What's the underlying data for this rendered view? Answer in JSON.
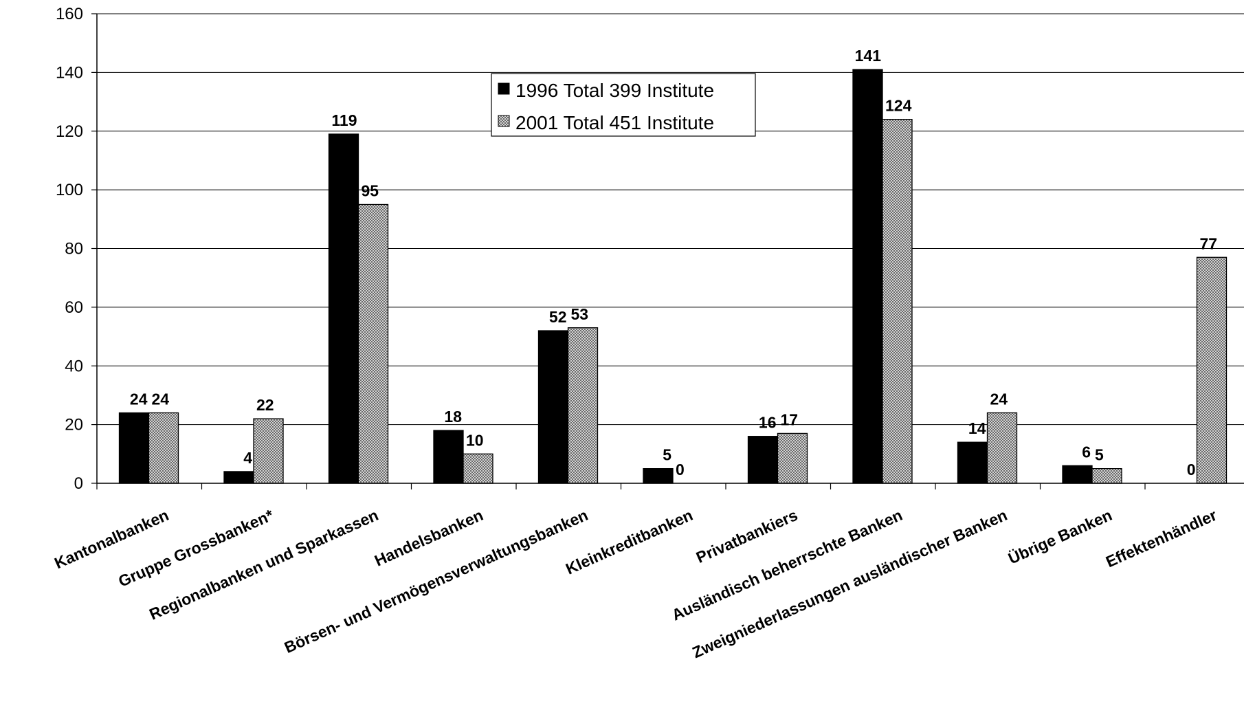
{
  "chart_data": {
    "type": "bar",
    "categories": [
      "Kantonalbanken",
      "Gruppe Grossbanken*",
      "Regionalbanken und Sparkassen",
      "Handelsbanken",
      "Börsen- und Vermögensverwaltungsbanken",
      "Kleinkreditbanken",
      "Privatbankiers",
      "Ausländisch beherrschte Banken",
      "Zweigniederlassungen ausländischer Banken",
      "Übrige Banken",
      "Effektenhändler"
    ],
    "series": [
      {
        "name": "1996 Total 399 Institute",
        "values": [
          24,
          4,
          119,
          18,
          52,
          5,
          16,
          141,
          14,
          6,
          0
        ],
        "color": "#000000",
        "pattern": "solid"
      },
      {
        "name": "2001 Total 451 Institute",
        "values": [
          24,
          22,
          95,
          10,
          53,
          0,
          17,
          124,
          24,
          5,
          77
        ],
        "color": "#a8a8a8",
        "pattern": "checkered"
      }
    ],
    "ylim": [
      0,
      160
    ],
    "yticks": [
      "0",
      "20",
      "40",
      "60",
      "80",
      "100",
      "120",
      "140",
      "160"
    ],
    "grid": true,
    "legend_position": "top-center",
    "data_labels": true
  }
}
